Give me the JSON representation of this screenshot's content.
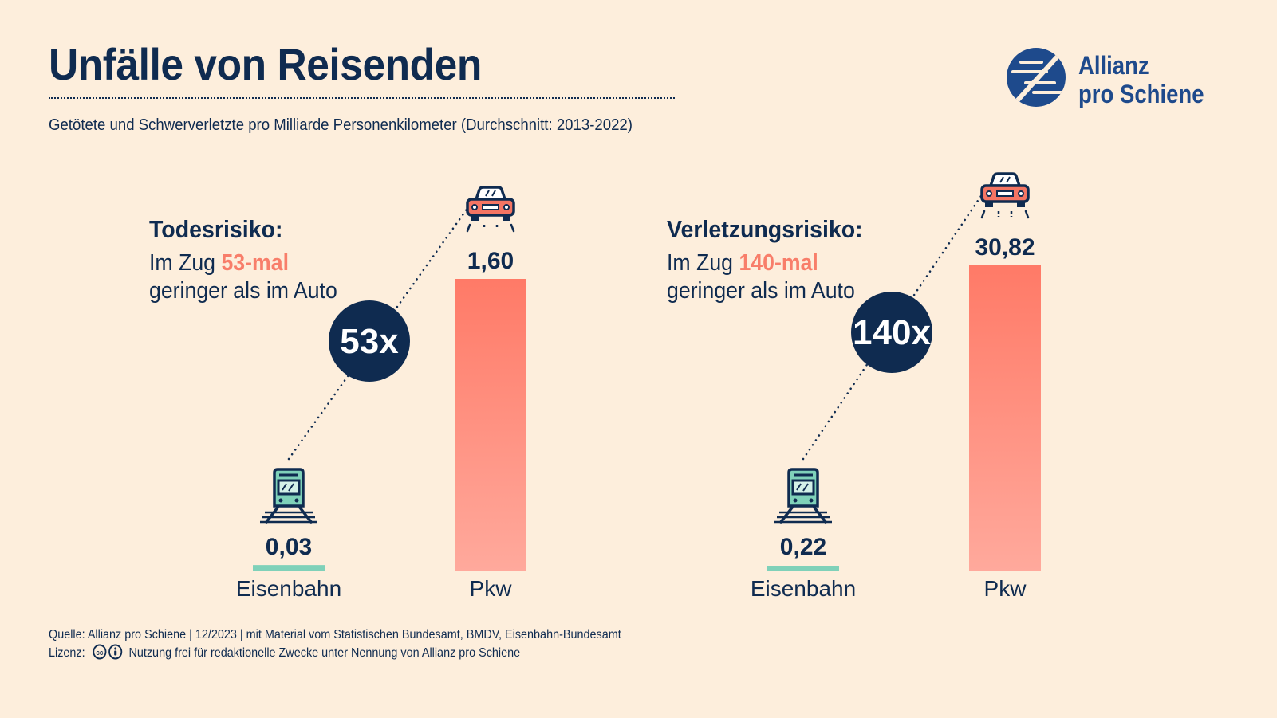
{
  "title": "Unfälle von Reisenden",
  "subtitle": "Getötete und Schwerverletzte pro Milliarde Personenkilometer (Durchschnitt: 2013-2022)",
  "logo": {
    "line1": "Allianz",
    "line2": "pro Schiene",
    "color": "#1E4A8C"
  },
  "footer": {
    "source": "Quelle: Allianz pro Schiene | 12/2023 | mit Material vom Statistischen Bundesamt, BMDV, Eisenbahn-Bundesamt",
    "license_label": "Lizenz:",
    "license_text": "Nutzung frei für redaktionelle Zwecke unter Nennung von Allianz pro Schiene"
  },
  "colors": {
    "background": "#FDEEDC",
    "navy": "#0F2B50",
    "rail": "#7FD1B9",
    "car_bar_top": "#FF7A67",
    "car_bar_bottom": "#FFA99C",
    "highlight": "#F87E6A"
  },
  "chart_data": [
    {
      "type": "bar",
      "heading": "Todesrisiko:",
      "desc_prefix": "Im Zug ",
      "desc_highlight": "53-mal",
      "desc_line2": "geringer als im Auto",
      "ratio_label": "53x",
      "categories": [
        "Eisenbahn",
        "Pkw"
      ],
      "values": [
        0.03,
        1.6
      ],
      "value_labels": [
        "0,03",
        "1,60"
      ],
      "icons": [
        "train-icon",
        "car-icon"
      ]
    },
    {
      "type": "bar",
      "heading": "Verletzungsrisiko:",
      "desc_prefix": "Im Zug ",
      "desc_highlight": "140-mal",
      "desc_line2": "geringer als im Auto",
      "ratio_label": "140x",
      "categories": [
        "Eisenbahn",
        "Pkw"
      ],
      "values": [
        0.22,
        30.82
      ],
      "value_labels": [
        "0,22",
        "30,82"
      ],
      "icons": [
        "train-icon",
        "car-icon"
      ]
    }
  ]
}
